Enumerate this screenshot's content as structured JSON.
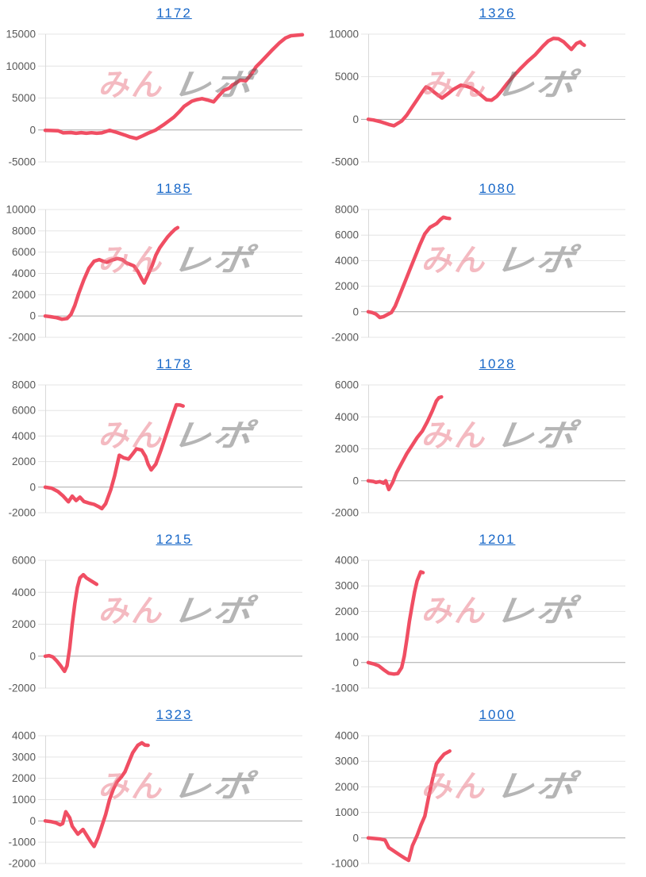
{
  "watermark": {
    "pink_text": "みん",
    "gray_text": "レポ",
    "pink_color": "rgba(233,118,132,0.5)",
    "gray_color": "rgba(90,90,90,0.45)"
  },
  "styles": {
    "line_color": "#f04e63",
    "title_color": "#1767c8",
    "tick_label_color": "#595959",
    "gridline_color": "#e4e4e4",
    "zero_line_color": "#a8a8a8",
    "axis_line_color": "#d9d9d9",
    "background": "#ffffff"
  },
  "chart_data": [
    {
      "type": "line",
      "title": "1172",
      "ylim": [
        -5000,
        15000
      ],
      "yticks": [
        15000,
        10000,
        5000,
        0,
        -5000
      ],
      "points": [
        [
          0,
          -50
        ],
        [
          0.02,
          -80
        ],
        [
          0.05,
          -120
        ],
        [
          0.07,
          -450
        ],
        [
          0.1,
          -400
        ],
        [
          0.12,
          -520
        ],
        [
          0.14,
          -420
        ],
        [
          0.16,
          -520
        ],
        [
          0.18,
          -430
        ],
        [
          0.2,
          -520
        ],
        [
          0.22,
          -450
        ],
        [
          0.25,
          -50
        ],
        [
          0.28,
          -400
        ],
        [
          0.31,
          -800
        ],
        [
          0.33,
          -1100
        ],
        [
          0.355,
          -1350
        ],
        [
          0.38,
          -900
        ],
        [
          0.4,
          -500
        ],
        [
          0.43,
          0
        ],
        [
          0.46,
          800
        ],
        [
          0.48,
          1400
        ],
        [
          0.5,
          2000
        ],
        [
          0.52,
          2800
        ],
        [
          0.54,
          3700
        ],
        [
          0.57,
          4500
        ],
        [
          0.59,
          4750
        ],
        [
          0.61,
          4900
        ],
        [
          0.63,
          4700
        ],
        [
          0.655,
          4400
        ],
        [
          0.675,
          5350
        ],
        [
          0.695,
          6200
        ],
        [
          0.717,
          6580
        ],
        [
          0.727,
          7000
        ],
        [
          0.74,
          7300
        ],
        [
          0.758,
          7800
        ],
        [
          0.78,
          7700
        ],
        [
          0.8,
          8650
        ],
        [
          0.82,
          9900
        ],
        [
          0.84,
          10700
        ],
        [
          0.86,
          11550
        ],
        [
          0.88,
          12400
        ],
        [
          0.91,
          13600
        ],
        [
          0.935,
          14400
        ],
        [
          0.956,
          14750
        ],
        [
          1.0,
          14900
        ]
      ]
    },
    {
      "type": "line",
      "title": "1326",
      "ylim": [
        -5000,
        10000
      ],
      "yticks": [
        10000,
        5000,
        0,
        -5000
      ],
      "points": [
        [
          0,
          0
        ],
        [
          0.02,
          -80
        ],
        [
          0.05,
          -300
        ],
        [
          0.08,
          -600
        ],
        [
          0.1,
          -750
        ],
        [
          0.13,
          -200
        ],
        [
          0.15,
          500
        ],
        [
          0.17,
          1400
        ],
        [
          0.19,
          2300
        ],
        [
          0.21,
          3200
        ],
        [
          0.225,
          3800
        ],
        [
          0.24,
          3600
        ],
        [
          0.26,
          3100
        ],
        [
          0.287,
          2500
        ],
        [
          0.31,
          3000
        ],
        [
          0.33,
          3500
        ],
        [
          0.36,
          4000
        ],
        [
          0.38,
          3900
        ],
        [
          0.4,
          3700
        ],
        [
          0.42,
          3300
        ],
        [
          0.44,
          2800
        ],
        [
          0.46,
          2300
        ],
        [
          0.48,
          2250
        ],
        [
          0.5,
          2700
        ],
        [
          0.52,
          3400
        ],
        [
          0.54,
          4200
        ],
        [
          0.56,
          4900
        ],
        [
          0.59,
          5900
        ],
        [
          0.62,
          6800
        ],
        [
          0.65,
          7600
        ],
        [
          0.68,
          8600
        ],
        [
          0.7,
          9200
        ],
        [
          0.72,
          9500
        ],
        [
          0.74,
          9450
        ],
        [
          0.76,
          9100
        ],
        [
          0.78,
          8500
        ],
        [
          0.79,
          8200
        ],
        [
          0.81,
          8900
        ],
        [
          0.825,
          9100
        ],
        [
          0.83,
          8900
        ],
        [
          0.84,
          8700
        ]
      ]
    },
    {
      "type": "line",
      "title": "1185",
      "ylim": [
        -2000,
        10000
      ],
      "yticks": [
        10000,
        8000,
        6000,
        4000,
        2000,
        0,
        -2000
      ],
      "points": [
        [
          0,
          0
        ],
        [
          0.02,
          -60
        ],
        [
          0.045,
          -160
        ],
        [
          0.065,
          -300
        ],
        [
          0.085,
          -230
        ],
        [
          0.1,
          150
        ],
        [
          0.115,
          1000
        ],
        [
          0.13,
          2100
        ],
        [
          0.15,
          3400
        ],
        [
          0.17,
          4500
        ],
        [
          0.19,
          5150
        ],
        [
          0.21,
          5300
        ],
        [
          0.225,
          5150
        ],
        [
          0.24,
          5050
        ],
        [
          0.26,
          5250
        ],
        [
          0.28,
          5400
        ],
        [
          0.3,
          5300
        ],
        [
          0.315,
          5000
        ],
        [
          0.33,
          4850
        ],
        [
          0.345,
          4700
        ],
        [
          0.36,
          4200
        ],
        [
          0.375,
          3500
        ],
        [
          0.385,
          3100
        ],
        [
          0.4,
          3900
        ],
        [
          0.415,
          4700
        ],
        [
          0.43,
          5700
        ],
        [
          0.445,
          6400
        ],
        [
          0.46,
          6900
        ],
        [
          0.475,
          7400
        ],
        [
          0.49,
          7800
        ],
        [
          0.505,
          8150
        ],
        [
          0.515,
          8300
        ]
      ]
    },
    {
      "type": "line",
      "title": "1080",
      "ylim": [
        -2000,
        8000
      ],
      "yticks": [
        8000,
        6000,
        4000,
        2000,
        0,
        -2000
      ],
      "points": [
        [
          0,
          0
        ],
        [
          0.015,
          -60
        ],
        [
          0.03,
          -180
        ],
        [
          0.045,
          -450
        ],
        [
          0.06,
          -380
        ],
        [
          0.075,
          -220
        ],
        [
          0.09,
          -60
        ],
        [
          0.105,
          450
        ],
        [
          0.12,
          1200
        ],
        [
          0.14,
          2200
        ],
        [
          0.16,
          3200
        ],
        [
          0.18,
          4200
        ],
        [
          0.2,
          5200
        ],
        [
          0.22,
          6100
        ],
        [
          0.24,
          6600
        ],
        [
          0.266,
          6900
        ],
        [
          0.28,
          7200
        ],
        [
          0.292,
          7400
        ],
        [
          0.305,
          7330
        ],
        [
          0.316,
          7300
        ]
      ]
    },
    {
      "type": "line",
      "title": "1178",
      "ylim": [
        -2000,
        8000
      ],
      "yticks": [
        8000,
        6000,
        4000,
        2000,
        0,
        -2000
      ],
      "points": [
        [
          0,
          0
        ],
        [
          0.025,
          -80
        ],
        [
          0.05,
          -350
        ],
        [
          0.07,
          -700
        ],
        [
          0.09,
          -1150
        ],
        [
          0.105,
          -700
        ],
        [
          0.12,
          -1050
        ],
        [
          0.135,
          -780
        ],
        [
          0.15,
          -1120
        ],
        [
          0.17,
          -1250
        ],
        [
          0.19,
          -1350
        ],
        [
          0.21,
          -1550
        ],
        [
          0.22,
          -1680
        ],
        [
          0.235,
          -1300
        ],
        [
          0.255,
          -200
        ],
        [
          0.27,
          900
        ],
        [
          0.288,
          2500
        ],
        [
          0.305,
          2300
        ],
        [
          0.324,
          2200
        ],
        [
          0.34,
          2600
        ],
        [
          0.355,
          3000
        ],
        [
          0.375,
          2900
        ],
        [
          0.39,
          2400
        ],
        [
          0.4,
          1800
        ],
        [
          0.412,
          1350
        ],
        [
          0.43,
          1800
        ],
        [
          0.45,
          2900
        ],
        [
          0.47,
          4100
        ],
        [
          0.49,
          5300
        ],
        [
          0.51,
          6450
        ],
        [
          0.525,
          6420
        ],
        [
          0.536,
          6350
        ]
      ]
    },
    {
      "type": "line",
      "title": "1028",
      "ylim": [
        -2000,
        6000
      ],
      "yticks": [
        6000,
        4000,
        2000,
        0,
        -2000
      ],
      "points": [
        [
          0,
          0
        ],
        [
          0.02,
          -40
        ],
        [
          0.03,
          -100
        ],
        [
          0.045,
          -50
        ],
        [
          0.06,
          -150
        ],
        [
          0.068,
          0
        ],
        [
          0.08,
          -550
        ],
        [
          0.095,
          -100
        ],
        [
          0.11,
          500
        ],
        [
          0.13,
          1100
        ],
        [
          0.15,
          1700
        ],
        [
          0.17,
          2200
        ],
        [
          0.19,
          2700
        ],
        [
          0.21,
          3100
        ],
        [
          0.23,
          3700
        ],
        [
          0.25,
          4400
        ],
        [
          0.265,
          5000
        ],
        [
          0.275,
          5200
        ],
        [
          0.285,
          5250
        ]
      ]
    },
    {
      "type": "line",
      "title": "1215",
      "ylim": [
        -2000,
        6000
      ],
      "yticks": [
        6000,
        4000,
        2000,
        0,
        -2000
      ],
      "points": [
        [
          0,
          0
        ],
        [
          0.015,
          30
        ],
        [
          0.03,
          -50
        ],
        [
          0.045,
          -300
        ],
        [
          0.06,
          -600
        ],
        [
          0.075,
          -950
        ],
        [
          0.085,
          -600
        ],
        [
          0.095,
          500
        ],
        [
          0.105,
          2000
        ],
        [
          0.115,
          3300
        ],
        [
          0.125,
          4300
        ],
        [
          0.135,
          4900
        ],
        [
          0.148,
          5100
        ],
        [
          0.16,
          4900
        ],
        [
          0.18,
          4700
        ],
        [
          0.2,
          4500
        ]
      ]
    },
    {
      "type": "line",
      "title": "1201",
      "ylim": [
        -1000,
        4000
      ],
      "yticks": [
        4000,
        3000,
        2000,
        1000,
        0,
        -1000
      ],
      "points": [
        [
          0,
          0
        ],
        [
          0.02,
          -50
        ],
        [
          0.04,
          -120
        ],
        [
          0.06,
          -280
        ],
        [
          0.08,
          -420
        ],
        [
          0.1,
          -450
        ],
        [
          0.115,
          -430
        ],
        [
          0.13,
          -200
        ],
        [
          0.14,
          250
        ],
        [
          0.15,
          900
        ],
        [
          0.16,
          1600
        ],
        [
          0.17,
          2200
        ],
        [
          0.18,
          2750
        ],
        [
          0.19,
          3200
        ],
        [
          0.204,
          3550
        ],
        [
          0.213,
          3520
        ]
      ]
    },
    {
      "type": "line",
      "title": "1323",
      "ylim": [
        -2000,
        4000
      ],
      "yticks": [
        4000,
        3000,
        2000,
        1000,
        0,
        -1000,
        -2000
      ],
      "points": [
        [
          0,
          0
        ],
        [
          0.02,
          -30
        ],
        [
          0.04,
          -80
        ],
        [
          0.058,
          -180
        ],
        [
          0.068,
          -120
        ],
        [
          0.08,
          430
        ],
        [
          0.095,
          150
        ],
        [
          0.105,
          -250
        ],
        [
          0.127,
          -620
        ],
        [
          0.147,
          -400
        ],
        [
          0.165,
          -750
        ],
        [
          0.178,
          -1000
        ],
        [
          0.19,
          -1200
        ],
        [
          0.205,
          -800
        ],
        [
          0.22,
          -250
        ],
        [
          0.235,
          300
        ],
        [
          0.25,
          1000
        ],
        [
          0.265,
          1500
        ],
        [
          0.28,
          1850
        ],
        [
          0.295,
          2050
        ],
        [
          0.31,
          2300
        ],
        [
          0.325,
          2750
        ],
        [
          0.34,
          3200
        ],
        [
          0.36,
          3550
        ],
        [
          0.376,
          3670
        ],
        [
          0.388,
          3560
        ],
        [
          0.4,
          3550
        ]
      ]
    },
    {
      "type": "line",
      "title": "1000",
      "ylim": [
        -1000,
        4000
      ],
      "yticks": [
        4000,
        3000,
        2000,
        1000,
        0,
        -1000
      ],
      "points": [
        [
          0,
          0
        ],
        [
          0.02,
          -20
        ],
        [
          0.045,
          -40
        ],
        [
          0.065,
          -80
        ],
        [
          0.08,
          -380
        ],
        [
          0.095,
          -480
        ],
        [
          0.11,
          -580
        ],
        [
          0.125,
          -680
        ],
        [
          0.14,
          -780
        ],
        [
          0.157,
          -880
        ],
        [
          0.172,
          -300
        ],
        [
          0.19,
          100
        ],
        [
          0.205,
          500
        ],
        [
          0.22,
          850
        ],
        [
          0.235,
          1600
        ],
        [
          0.25,
          2300
        ],
        [
          0.265,
          2900
        ],
        [
          0.28,
          3100
        ],
        [
          0.295,
          3280
        ],
        [
          0.317,
          3400
        ]
      ]
    }
  ]
}
